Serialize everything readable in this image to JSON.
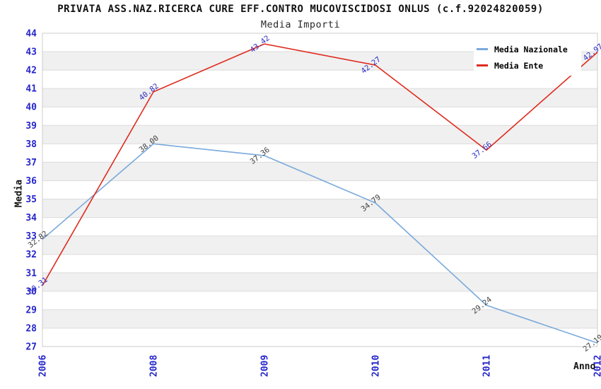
{
  "header": {
    "title": "PRIVATA ASS.NAZ.RICERCA CURE EFF.CONTRO MUCOVISCIDOSI ONLUS (c.f.92024820059)",
    "subtitle": "Media Importi"
  },
  "chart_data": {
    "type": "line",
    "title": "PRIVATA ASS.NAZ.RICERCA CURE EFF.CONTRO MUCOVISCIDOSI ONLUS (c.f.92024820059)",
    "subtitle": "Media Importi",
    "categories": [
      "2006",
      "2008",
      "2009",
      "2010",
      "2011",
      "2012"
    ],
    "series": [
      {
        "name": "Media Nazionale",
        "color": "#7aa9db",
        "label_color": "#404040",
        "values": [
          32.82,
          38.0,
          37.36,
          34.79,
          29.24,
          27.19
        ],
        "labels": [
          "32.82",
          "38.00",
          "37.36",
          "34.79",
          "29.24",
          "27.19"
        ]
      },
      {
        "name": "Media Ente",
        "color": "#df2b1e",
        "label_color": "#2c2cc4",
        "values": [
          30.31,
          40.82,
          43.42,
          42.27,
          37.66,
          42.97
        ],
        "labels": [
          "30.31",
          "40.82",
          "43.42",
          "42.27",
          "37.66",
          "42.97"
        ]
      }
    ],
    "xlabel": "Anno",
    "ylabel": "Media",
    "ylim": [
      27,
      44
    ],
    "y_tick_step": 1,
    "x_tick_rotation": -90,
    "point_label_rotation": -38,
    "legend_position": "top-right",
    "grid": "horizontal-bands",
    "tick_color": "#2525cc",
    "band_color": "#f0f0f0",
    "gridline_color": "#dcdcdc",
    "border_color": "#cccccc",
    "background_color": "#ffffff"
  }
}
